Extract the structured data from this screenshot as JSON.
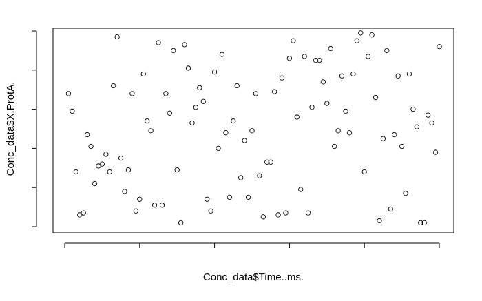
{
  "chart_data": {
    "type": "scatter",
    "title": "",
    "xlabel": "Conc_data$Time..ms.",
    "ylabel": "Conc_data$X.ProtA.",
    "xlim": [
      0,
      100
    ],
    "ylim": [
      0,
      100
    ],
    "x_tick_count": 6,
    "y_tick_count": 6,
    "tick_labels_shown": false,
    "grid": false,
    "legend": "none",
    "marker": "open-circle",
    "points": [
      {
        "x": 1,
        "y": 68
      },
      {
        "x": 2,
        "y": 59
      },
      {
        "x": 3,
        "y": 28
      },
      {
        "x": 4,
        "y": 6
      },
      {
        "x": 5,
        "y": 7
      },
      {
        "x": 6,
        "y": 47
      },
      {
        "x": 7,
        "y": 41
      },
      {
        "x": 8,
        "y": 22
      },
      {
        "x": 9,
        "y": 31
      },
      {
        "x": 10,
        "y": 32
      },
      {
        "x": 11,
        "y": 37
      },
      {
        "x": 12,
        "y": 28
      },
      {
        "x": 13,
        "y": 72
      },
      {
        "x": 14,
        "y": 97
      },
      {
        "x": 15,
        "y": 35
      },
      {
        "x": 16,
        "y": 18
      },
      {
        "x": 17,
        "y": 29
      },
      {
        "x": 18,
        "y": 68
      },
      {
        "x": 19,
        "y": 8
      },
      {
        "x": 20,
        "y": 14
      },
      {
        "x": 21,
        "y": 78
      },
      {
        "x": 22,
        "y": 54
      },
      {
        "x": 23,
        "y": 49
      },
      {
        "x": 24,
        "y": 11
      },
      {
        "x": 25,
        "y": 94
      },
      {
        "x": 26,
        "y": 11
      },
      {
        "x": 27,
        "y": 68
      },
      {
        "x": 28,
        "y": 58
      },
      {
        "x": 29,
        "y": 90
      },
      {
        "x": 30,
        "y": 29
      },
      {
        "x": 31,
        "y": 2
      },
      {
        "x": 32,
        "y": 93
      },
      {
        "x": 33,
        "y": 81
      },
      {
        "x": 34,
        "y": 53
      },
      {
        "x": 35,
        "y": 61
      },
      {
        "x": 36,
        "y": 71
      },
      {
        "x": 37,
        "y": 64
      },
      {
        "x": 38,
        "y": 14
      },
      {
        "x": 39,
        "y": 8
      },
      {
        "x": 40,
        "y": 79
      },
      {
        "x": 41,
        "y": 40
      },
      {
        "x": 42,
        "y": 88
      },
      {
        "x": 43,
        "y": 48
      },
      {
        "x": 44,
        "y": 15
      },
      {
        "x": 45,
        "y": 54
      },
      {
        "x": 46,
        "y": 72
      },
      {
        "x": 47,
        "y": 25
      },
      {
        "x": 48,
        "y": 44
      },
      {
        "x": 49,
        "y": 15
      },
      {
        "x": 50,
        "y": 49
      },
      {
        "x": 51,
        "y": 68
      },
      {
        "x": 52,
        "y": 26
      },
      {
        "x": 53,
        "y": 5
      },
      {
        "x": 54,
        "y": 33
      },
      {
        "x": 55,
        "y": 33
      },
      {
        "x": 56,
        "y": 69
      },
      {
        "x": 57,
        "y": 6
      },
      {
        "x": 58,
        "y": 76
      },
      {
        "x": 59,
        "y": 7
      },
      {
        "x": 60,
        "y": 86
      },
      {
        "x": 61,
        "y": 95
      },
      {
        "x": 62,
        "y": 56
      },
      {
        "x": 63,
        "y": 19
      },
      {
        "x": 64,
        "y": 87
      },
      {
        "x": 65,
        "y": 7
      },
      {
        "x": 66,
        "y": 61
      },
      {
        "x": 67,
        "y": 85
      },
      {
        "x": 68,
        "y": 85
      },
      {
        "x": 69,
        "y": 74
      },
      {
        "x": 70,
        "y": 63
      },
      {
        "x": 71,
        "y": 91
      },
      {
        "x": 72,
        "y": 41
      },
      {
        "x": 73,
        "y": 49
      },
      {
        "x": 74,
        "y": 77
      },
      {
        "x": 75,
        "y": 59
      },
      {
        "x": 76,
        "y": 48
      },
      {
        "x": 77,
        "y": 78
      },
      {
        "x": 78,
        "y": 95
      },
      {
        "x": 79,
        "y": 99
      },
      {
        "x": 80,
        "y": 28
      },
      {
        "x": 81,
        "y": 87
      },
      {
        "x": 82,
        "y": 98
      },
      {
        "x": 83,
        "y": 66
      },
      {
        "x": 84,
        "y": 3
      },
      {
        "x": 85,
        "y": 45
      },
      {
        "x": 86,
        "y": 90
      },
      {
        "x": 87,
        "y": 9
      },
      {
        "x": 88,
        "y": 47
      },
      {
        "x": 89,
        "y": 77
      },
      {
        "x": 90,
        "y": 41
      },
      {
        "x": 91,
        "y": 17
      },
      {
        "x": 92,
        "y": 78
      },
      {
        "x": 93,
        "y": 60
      },
      {
        "x": 94,
        "y": 51
      },
      {
        "x": 95,
        "y": 2
      },
      {
        "x": 96,
        "y": 2
      },
      {
        "x": 97,
        "y": 57
      },
      {
        "x": 98,
        "y": 53
      },
      {
        "x": 99,
        "y": 38
      },
      {
        "x": 100,
        "y": 92
      }
    ]
  }
}
